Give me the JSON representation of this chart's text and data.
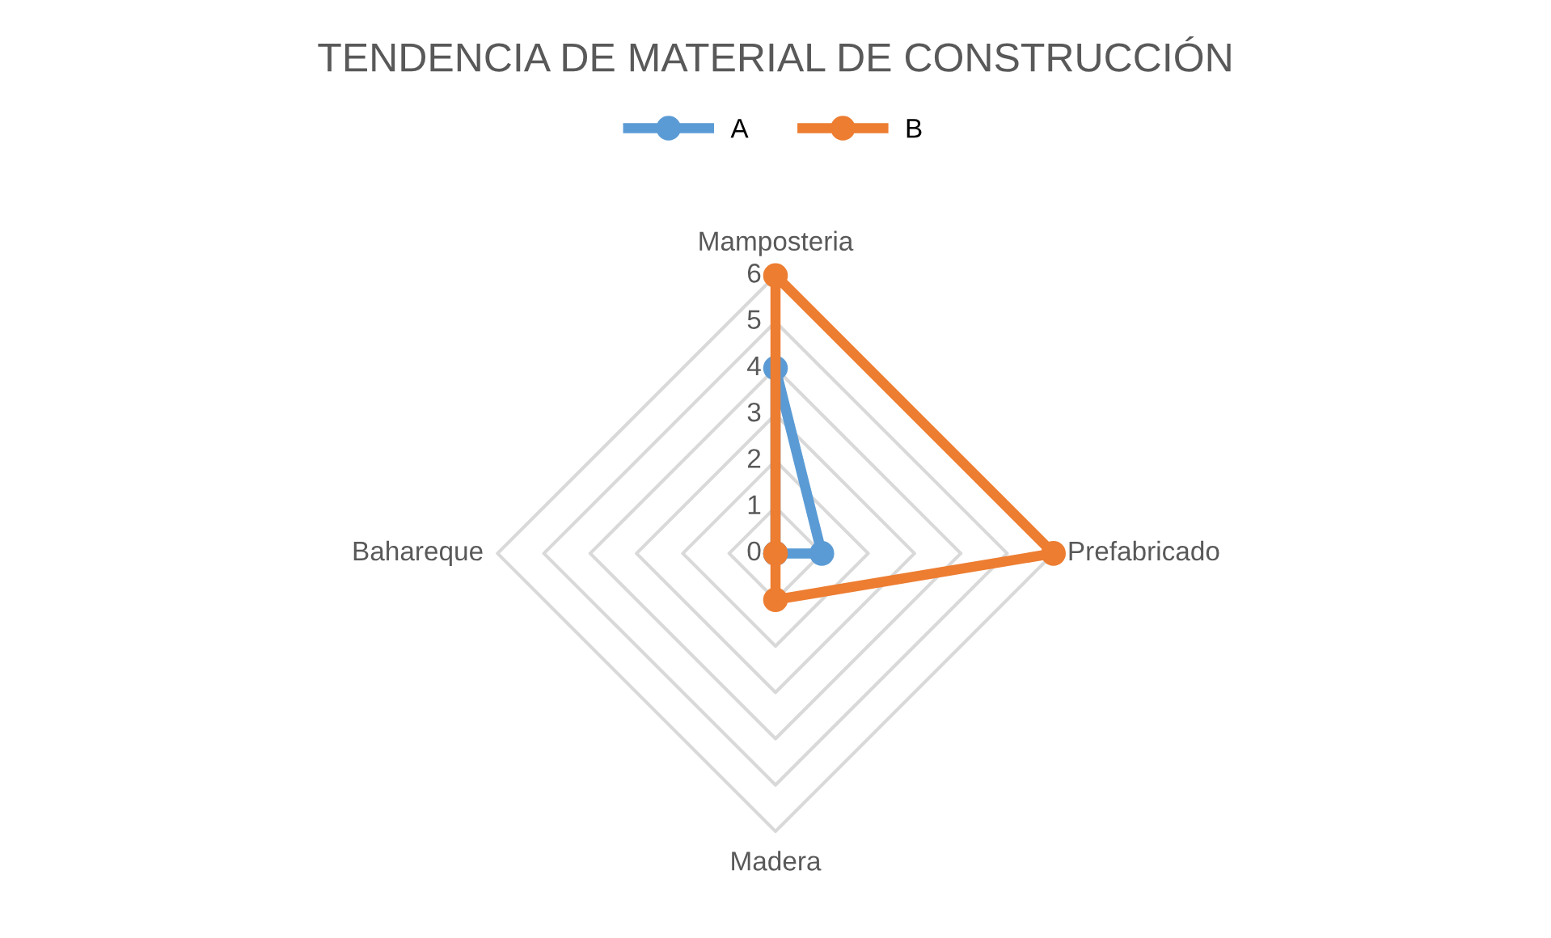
{
  "chart_data": {
    "type": "radar",
    "title": "TENDENCIA DE MATERIAL DE CONSTRUCCIÓN",
    "categories": [
      "Mamposteria",
      "Prefabricado",
      "Madera",
      "Bahareque"
    ],
    "series": [
      {
        "name": "A",
        "color": "#5b9bd5",
        "values": [
          4,
          1,
          0,
          0
        ]
      },
      {
        "name": "B",
        "color": "#ed7d31",
        "values": [
          6,
          6,
          1,
          0
        ]
      }
    ],
    "ylim": [
      0,
      6
    ],
    "yticks": [
      0,
      1,
      2,
      3,
      4,
      5,
      6
    ],
    "grid": true,
    "legend": "top",
    "marker": "circle"
  }
}
